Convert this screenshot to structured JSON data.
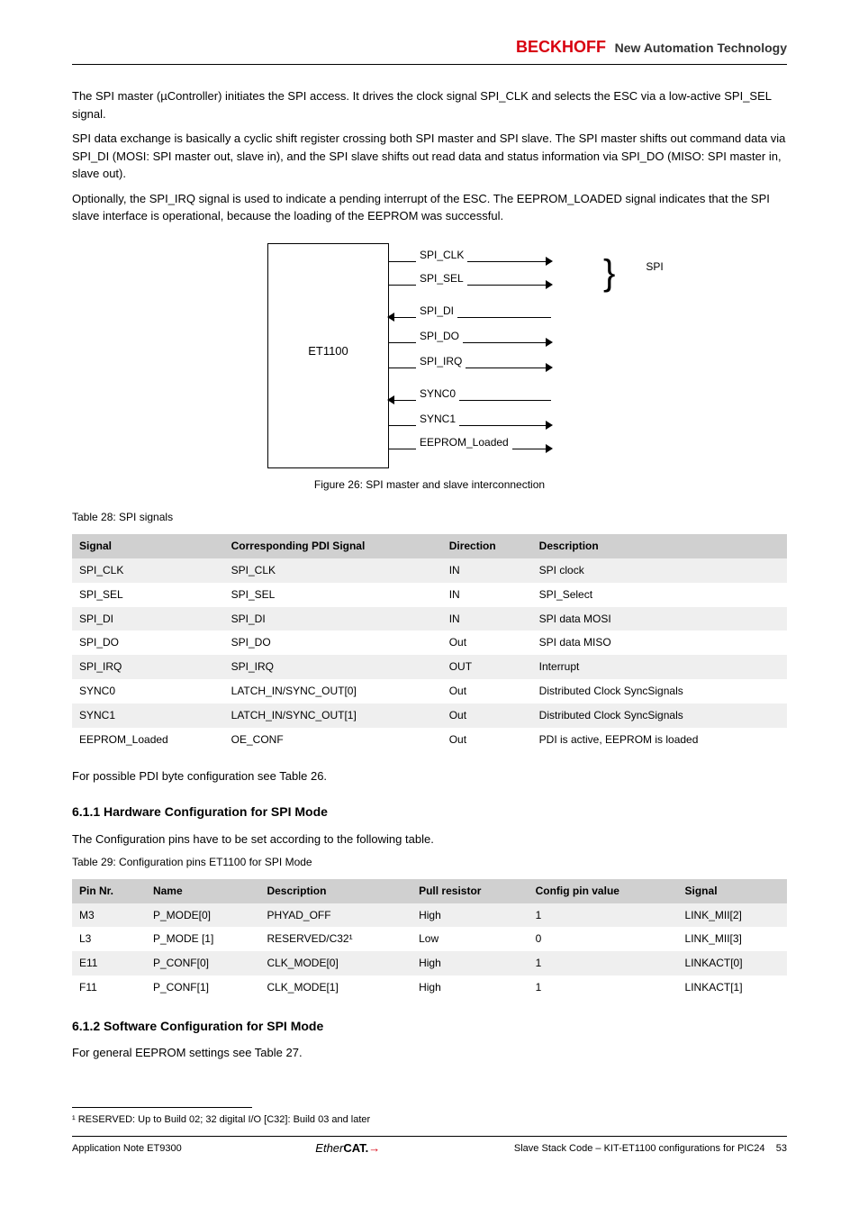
{
  "header": {
    "brand": "BECKHOFF",
    "tag": "New Automation Technology"
  },
  "intro": [
    "The SPI master (µController) initiates the SPI access. It drives the clock signal SPI_CLK and selects the ESC via a low-active SPI_SEL signal.",
    "SPI data exchange is basically a cyclic shift register crossing both SPI master and SPI slave. The SPI master shifts out command data via SPI_DI (MOSI: SPI master out, slave in), and the SPI slave shifts out read data and status information via SPI_DO (MISO: SPI master in, slave out).",
    "Optionally, the SPI_IRQ signal is used to indicate a pending interrupt of the ESC. The EEPROM_LOADED signal indicates that the SPI slave interface is operational, because the loading of the EEPROM was successful."
  ],
  "diagram": {
    "box_label": "ET1100",
    "arrows": [
      {
        "label": "SPI_CLK",
        "dir": "r"
      },
      {
        "label": "SPI_SEL",
        "dir": "r"
      },
      {
        "label": "SPI_DI",
        "dir": "l"
      },
      {
        "label": "SPI_DO",
        "dir": "r"
      },
      {
        "label": "SPI_IRQ",
        "dir": "r"
      },
      {
        "label": "SYNC0",
        "dir": "l"
      },
      {
        "label": "SYNC1",
        "dir": "r"
      },
      {
        "label": "EEPROM_Loaded",
        "dir": "r"
      }
    ],
    "brace_label": "SPI"
  },
  "fig_caption": "Figure 26: SPI master and slave interconnection",
  "table1": {
    "caption": "Table 28: SPI signals",
    "headers": [
      "Signal",
      "Corresponding PDI Signal",
      "Direction",
      "Description"
    ],
    "rows": [
      [
        "SPI_CLK",
        "SPI_CLK",
        "IN",
        "SPI clock"
      ],
      [
        "SPI_SEL",
        "SPI_SEL",
        "IN",
        "SPI_Select"
      ],
      [
        "SPI_DI",
        "SPI_DI",
        "IN",
        "SPI data MOSI"
      ],
      [
        "SPI_DO",
        "SPI_DO",
        "Out",
        "SPI data MISO"
      ],
      [
        "SPI_IRQ",
        "SPI_IRQ",
        "OUT",
        "Interrupt"
      ],
      [
        "SYNC0",
        "LATCH_IN/SYNC_OUT[0]",
        "Out",
        "Distributed Clock SyncSignals"
      ],
      [
        "SYNC1",
        "LATCH_IN/SYNC_OUT[1]",
        "Out",
        "Distributed Clock SyncSignals"
      ],
      [
        "EEPROM_Loaded",
        "OE_CONF",
        "Out",
        "PDI is active, EEPROM is loaded"
      ]
    ]
  },
  "para_after_t1": "For possible PDI byte configuration see Table 26.",
  "sec_6_1_1": {
    "title": "6.1.1 Hardware Configuration for SPI Mode",
    "text": "The Configuration pins have to be set according to the following table.",
    "caption": "Table 29: Configuration pins ET1100 for SPI Mode",
    "headers": [
      "Pin Nr.",
      "Name",
      "Description",
      "Pull resistor",
      "Config pin value",
      "Signal"
    ],
    "rows": [
      [
        "M3",
        "P_MODE[0]",
        "PHYAD_OFF",
        "High",
        "1",
        "LINK_MII[2]"
      ],
      [
        "L3",
        "P_MODE [1]",
        "RESERVED/C32¹",
        "Low",
        "0",
        "LINK_MII[3]"
      ],
      [
        "E11",
        "P_CONF[0]",
        "CLK_MODE[0]",
        "High",
        "1",
        "LINKACT[0]"
      ],
      [
        "F11",
        "P_CONF[1]",
        "CLK_MODE[1]",
        "High",
        "1",
        "LINKACT[1]"
      ]
    ]
  },
  "sec_6_1_2": {
    "title": "6.1.2 Software Configuration for SPI Mode",
    "text": "For general EEPROM settings see Table 27."
  },
  "footnote": "¹ RESERVED: Up to Build 02; 32 digital I/O [C32]: Build 03 and later",
  "footer": {
    "left": "Application Note ET9300",
    "right": "Slave Stack Code – KIT-ET1100 configurations for PIC24",
    "page": "53"
  }
}
